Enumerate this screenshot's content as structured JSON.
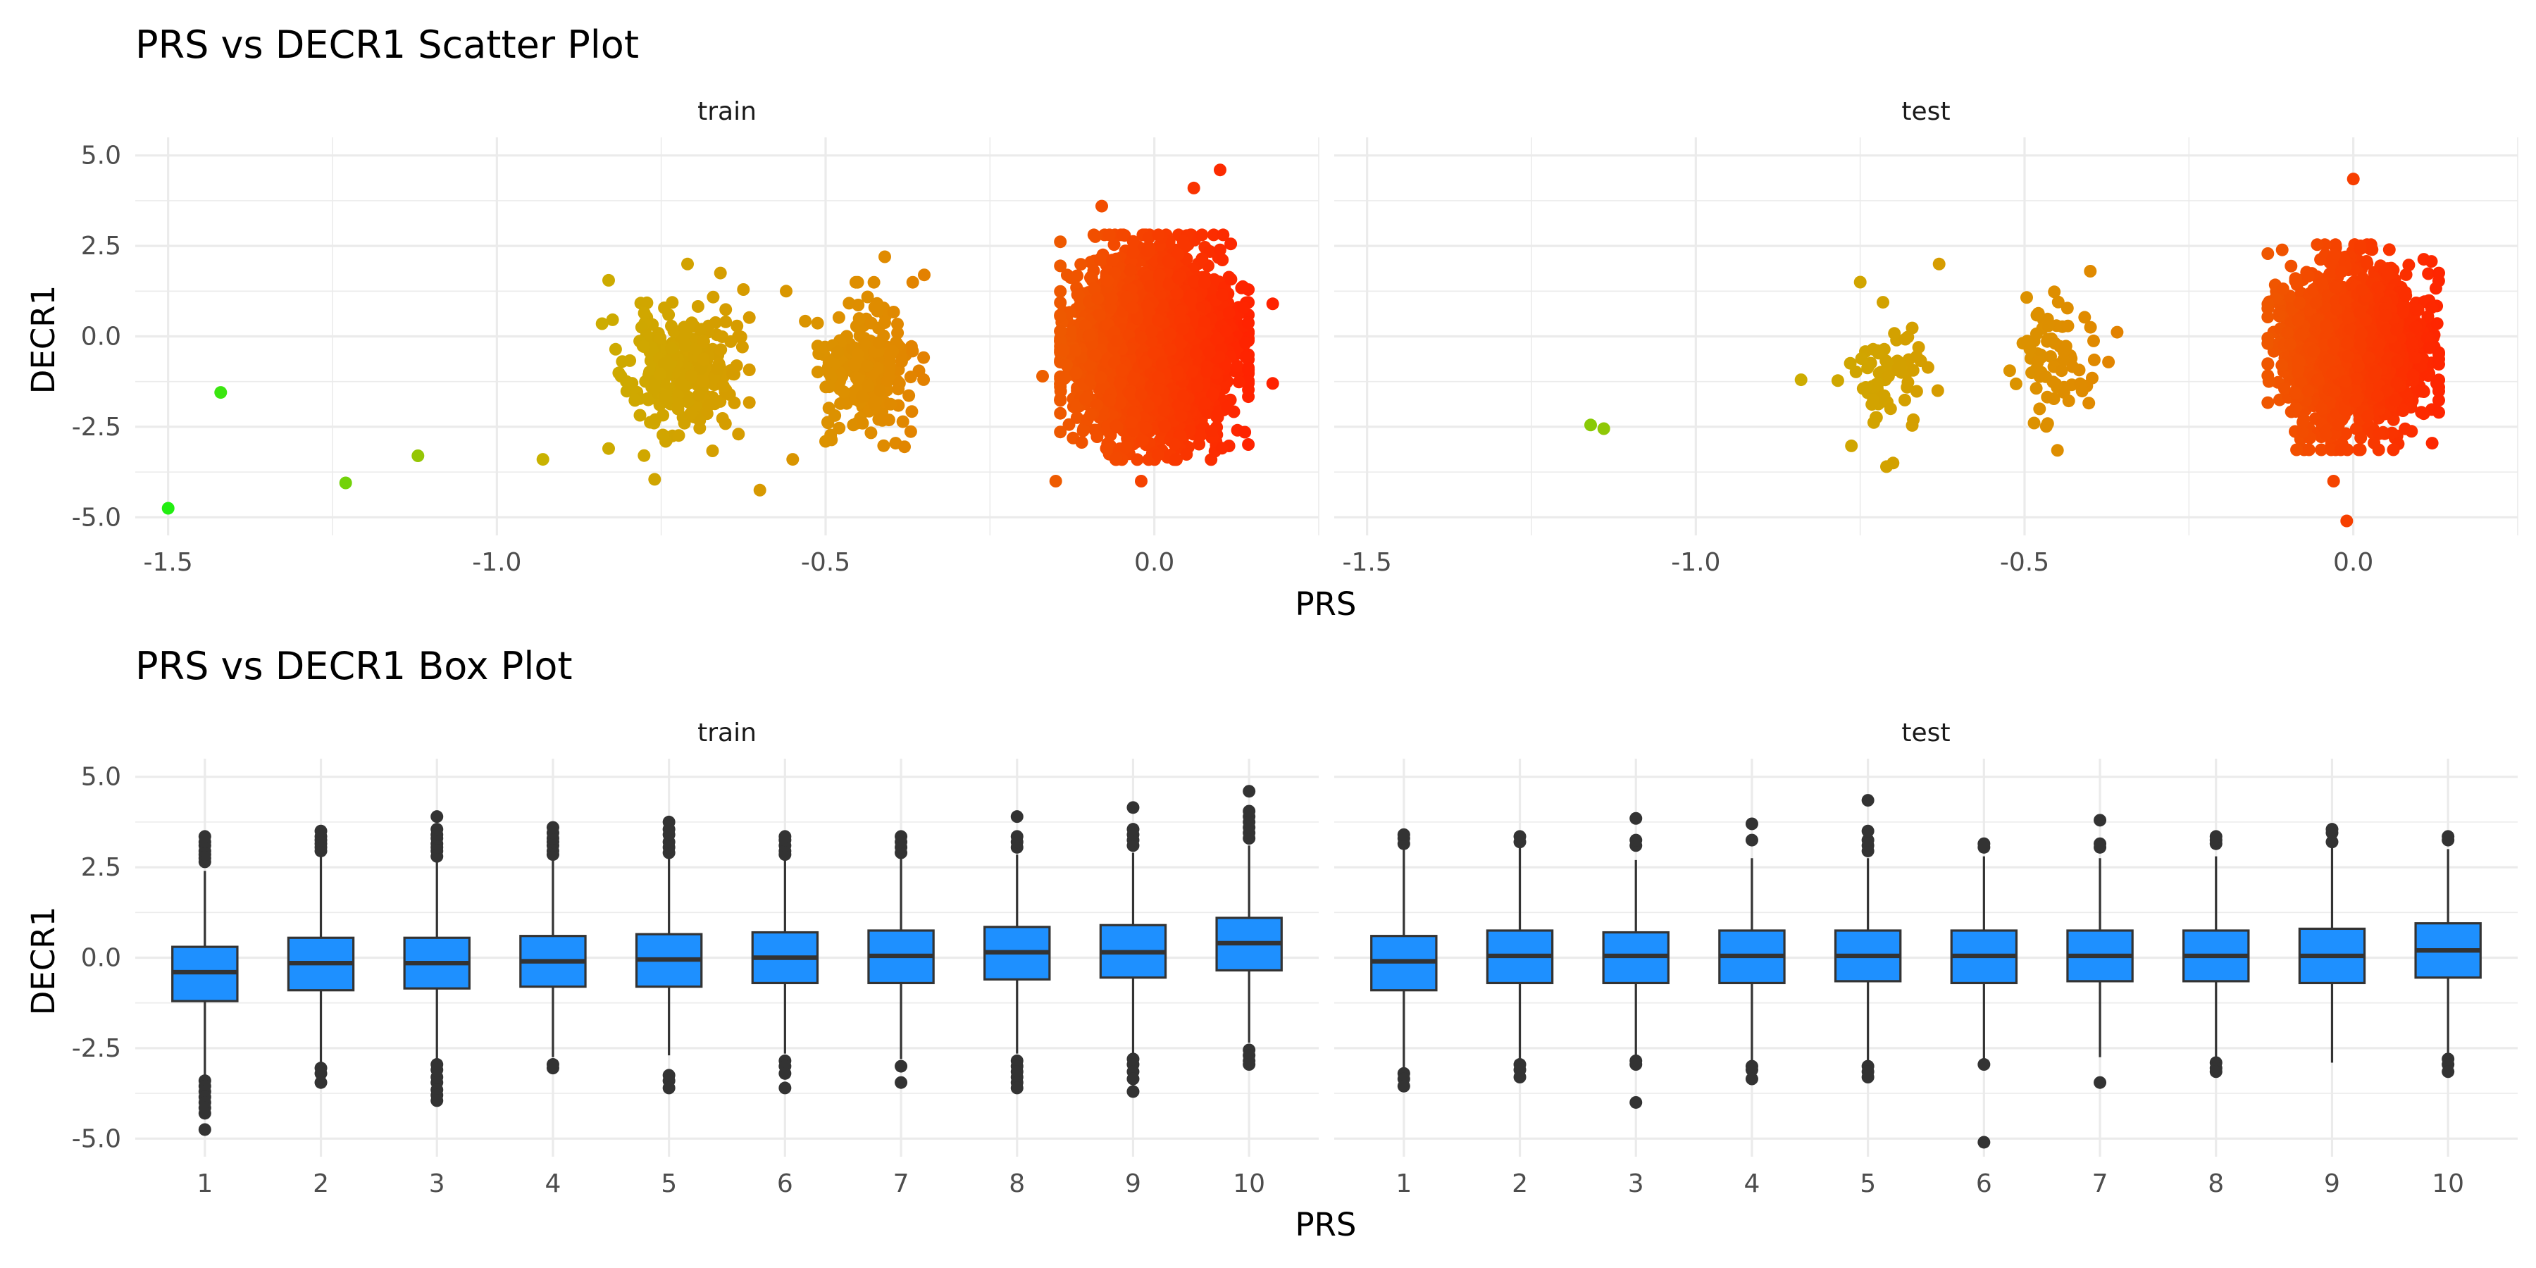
{
  "chart_data": [
    {
      "type": "scatter",
      "title": "PRS vs DECR1 Scatter Plot",
      "xlabel": "PRS",
      "ylabel": "DECR1",
      "xlim": [
        -1.55,
        0.25
      ],
      "ylim": [
        -5.5,
        5.5
      ],
      "x_ticks": [
        "-1.5",
        "-1.0",
        "-0.5",
        "0.0"
      ],
      "y_ticks": [
        "-5.0",
        "-2.5",
        "0.0",
        "2.5",
        "5.0"
      ],
      "grid": true,
      "color_gradient": [
        "#22ee11",
        "#c8b400",
        "#e08a00",
        "#ff2200"
      ],
      "facets": [
        {
          "label": "train",
          "clusters": [
            {
              "x_center": -0.72,
              "y_center": -1.0,
              "x_sd": 0.04,
              "y_sd": 0.85,
              "n": 260
            },
            {
              "x_center": -0.44,
              "y_center": -0.8,
              "x_sd": 0.035,
              "y_sd": 0.85,
              "n": 230
            },
            {
              "x_center": 0.0,
              "y_center": -0.3,
              "x_sd": 0.055,
              "y_sd": 1.15,
              "n": 4500
            }
          ],
          "points": [
            {
              "x": -1.5,
              "y": -4.75
            },
            {
              "x": -1.42,
              "y": -1.55
            },
            {
              "x": -1.23,
              "y": -4.05
            },
            {
              "x": -1.12,
              "y": -3.3
            },
            {
              "x": -0.93,
              "y": -3.4
            },
            {
              "x": -0.84,
              "y": 0.35
            },
            {
              "x": -0.83,
              "y": 1.55
            },
            {
              "x": -0.83,
              "y": -3.1
            },
            {
              "x": -0.76,
              "y": -3.95
            },
            {
              "x": -0.6,
              "y": -4.25
            },
            {
              "x": -0.66,
              "y": 1.75
            },
            {
              "x": -0.71,
              "y": 2.0
            },
            {
              "x": -0.56,
              "y": 1.25
            },
            {
              "x": -0.55,
              "y": -3.4
            },
            {
              "x": -0.41,
              "y": 2.2
            },
            {
              "x": -0.35,
              "y": 1.7
            },
            {
              "x": -0.38,
              "y": -3.05
            },
            {
              "x": -0.5,
              "y": -2.9
            },
            {
              "x": 0.1,
              "y": 4.6
            },
            {
              "x": 0.06,
              "y": 4.1
            },
            {
              "x": -0.08,
              "y": 3.6
            },
            {
              "x": -0.15,
              "y": -4.0
            },
            {
              "x": -0.02,
              "y": -4.0
            },
            {
              "x": 0.18,
              "y": 0.9
            },
            {
              "x": 0.18,
              "y": -1.3
            },
            {
              "x": -0.17,
              "y": -1.1
            }
          ]
        },
        {
          "label": "test",
          "clusters": [
            {
              "x_center": -0.71,
              "y_center": -1.0,
              "x_sd": 0.03,
              "y_sd": 0.75,
              "n": 70
            },
            {
              "x_center": -0.45,
              "y_center": -0.6,
              "x_sd": 0.035,
              "y_sd": 0.75,
              "n": 75
            },
            {
              "x_center": 0.0,
              "y_center": -0.3,
              "x_sd": 0.05,
              "y_sd": 1.05,
              "n": 2200
            }
          ],
          "points": [
            {
              "x": -1.16,
              "y": -2.45
            },
            {
              "x": -1.14,
              "y": -2.55
            },
            {
              "x": -0.84,
              "y": -1.2
            },
            {
              "x": -0.7,
              "y": -3.5
            },
            {
              "x": -0.71,
              "y": -3.6
            },
            {
              "x": -0.75,
              "y": 1.5
            },
            {
              "x": -0.63,
              "y": 2.0
            },
            {
              "x": -0.45,
              "y": -3.15
            },
            {
              "x": -0.4,
              "y": 1.8
            },
            {
              "x": 0.0,
              "y": 4.35
            },
            {
              "x": -0.01,
              "y": -5.1
            },
            {
              "x": -0.03,
              "y": -4.0
            },
            {
              "x": 0.13,
              "y": -2.1
            },
            {
              "x": 0.13,
              "y": 1.75
            }
          ]
        }
      ]
    },
    {
      "type": "box",
      "title": "PRS vs DECR1 Box Plot",
      "xlabel": "PRS",
      "ylabel": "DECR1",
      "categories": [
        "1",
        "2",
        "3",
        "4",
        "5",
        "6",
        "7",
        "8",
        "9",
        "10"
      ],
      "ylim": [
        -5.5,
        5.5
      ],
      "y_ticks": [
        "-5.0",
        "-2.5",
        "0.0",
        "2.5",
        "5.0"
      ],
      "grid": true,
      "box_color": "#1e90ff",
      "facets": [
        {
          "label": "train",
          "boxes": [
            {
              "lower_whisker": -3.25,
              "q1": -1.2,
              "median": -0.4,
              "q3": 0.3,
              "upper_whisker": 2.4,
              "outliers": [
                2.65,
                2.75,
                2.85,
                2.95,
                3.1,
                3.2,
                3.35,
                -3.4,
                -3.55,
                -3.7,
                -3.85,
                -4.0,
                -4.15,
                -4.3,
                -4.75
              ]
            },
            {
              "lower_whisker": -2.9,
              "q1": -0.9,
              "median": -0.15,
              "q3": 0.55,
              "upper_whisker": 2.8,
              "outliers": [
                2.95,
                3.05,
                3.15,
                3.25,
                3.35,
                3.5,
                -3.05,
                -3.2,
                -3.45
              ]
            },
            {
              "lower_whisker": -2.8,
              "q1": -0.85,
              "median": -0.15,
              "q3": 0.55,
              "upper_whisker": 2.65,
              "outliers": [
                2.8,
                2.95,
                3.05,
                3.15,
                3.3,
                3.4,
                3.55,
                3.9,
                -2.95,
                -3.1,
                -3.3,
                -3.45,
                -3.65,
                -3.8,
                -3.95
              ]
            },
            {
              "lower_whisker": -2.75,
              "q1": -0.8,
              "median": -0.1,
              "q3": 0.6,
              "upper_whisker": 2.7,
              "outliers": [
                2.85,
                2.95,
                3.1,
                3.2,
                3.3,
                3.45,
                3.6,
                -2.95,
                -3.05
              ]
            },
            {
              "lower_whisker": -2.7,
              "q1": -0.8,
              "median": -0.05,
              "q3": 0.65,
              "upper_whisker": 2.75,
              "outliers": [
                2.9,
                3.05,
                3.2,
                3.4,
                3.55,
                3.75,
                -3.25,
                -3.4,
                -3.6
              ]
            },
            {
              "lower_whisker": -2.65,
              "q1": -0.7,
              "median": 0.0,
              "q3": 0.7,
              "upper_whisker": 2.7,
              "outliers": [
                2.85,
                2.95,
                3.1,
                3.25,
                3.35,
                -2.85,
                -3.0,
                -3.2,
                -3.6
              ]
            },
            {
              "lower_whisker": -2.8,
              "q1": -0.7,
              "median": 0.05,
              "q3": 0.75,
              "upper_whisker": 2.75,
              "outliers": [
                2.9,
                3.05,
                3.2,
                3.35,
                -3.0,
                -3.45
              ]
            },
            {
              "lower_whisker": -2.65,
              "q1": -0.6,
              "median": 0.15,
              "q3": 0.85,
              "upper_whisker": 2.85,
              "outliers": [
                3.05,
                3.2,
                3.35,
                3.9,
                -2.85,
                -3.0,
                -3.15,
                -3.3,
                -3.45,
                -3.6
              ]
            },
            {
              "lower_whisker": -2.65,
              "q1": -0.55,
              "median": 0.15,
              "q3": 0.9,
              "upper_whisker": 2.9,
              "outliers": [
                3.1,
                3.25,
                3.4,
                3.55,
                4.15,
                -2.8,
                -2.95,
                -3.15,
                -3.35,
                -3.7
              ]
            },
            {
              "lower_whisker": -2.35,
              "q1": -0.35,
              "median": 0.4,
              "q3": 1.1,
              "upper_whisker": 3.1,
              "outliers": [
                3.3,
                3.45,
                3.6,
                3.75,
                3.9,
                4.05,
                4.6,
                -2.55,
                -2.7,
                -2.85,
                -2.95
              ]
            }
          ]
        },
        {
          "label": "test",
          "boxes": [
            {
              "lower_whisker": -3.05,
              "q1": -0.9,
              "median": -0.1,
              "q3": 0.6,
              "upper_whisker": 3.0,
              "outliers": [
                3.15,
                3.3,
                3.4,
                -3.2,
                -3.35,
                -3.55
              ]
            },
            {
              "lower_whisker": -2.85,
              "q1": -0.7,
              "median": 0.05,
              "q3": 0.75,
              "upper_whisker": 3.05,
              "outliers": [
                3.2,
                3.35,
                -2.95,
                -3.1,
                -3.3
              ]
            },
            {
              "lower_whisker": -2.7,
              "q1": -0.7,
              "median": 0.05,
              "q3": 0.7,
              "upper_whisker": 2.7,
              "outliers": [
                3.1,
                3.25,
                3.85,
                -2.85,
                -2.95,
                -4.0
              ]
            },
            {
              "lower_whisker": -2.85,
              "q1": -0.7,
              "median": 0.05,
              "q3": 0.75,
              "upper_whisker": 2.75,
              "outliers": [
                3.25,
                3.7,
                -3.0,
                -3.1,
                -3.35
              ]
            },
            {
              "lower_whisker": -2.85,
              "q1": -0.65,
              "median": 0.05,
              "q3": 0.75,
              "upper_whisker": 2.75,
              "outliers": [
                2.95,
                3.1,
                3.25,
                3.5,
                4.35,
                -3.0,
                -3.15,
                -3.3
              ]
            },
            {
              "lower_whisker": -2.85,
              "q1": -0.7,
              "median": 0.05,
              "q3": 0.75,
              "upper_whisker": 2.8,
              "outliers": [
                3.05,
                3.15,
                -2.95,
                -5.1
              ]
            },
            {
              "lower_whisker": -2.75,
              "q1": -0.65,
              "median": 0.05,
              "q3": 0.75,
              "upper_whisker": 2.75,
              "outliers": [
                3.05,
                3.15,
                3.8,
                -3.45
              ]
            },
            {
              "lower_whisker": -2.75,
              "q1": -0.65,
              "median": 0.05,
              "q3": 0.75,
              "upper_whisker": 2.8,
              "outliers": [
                3.15,
                3.25,
                3.35,
                -2.9,
                -3.05,
                -3.15
              ]
            },
            {
              "lower_whisker": -2.9,
              "q1": -0.7,
              "median": 0.05,
              "q3": 0.8,
              "upper_whisker": 3.05,
              "outliers": [
                3.2,
                3.45,
                3.55
              ]
            },
            {
              "lower_whisker": -2.65,
              "q1": -0.55,
              "median": 0.2,
              "q3": 0.95,
              "upper_whisker": 3.0,
              "outliers": [
                3.25,
                3.35,
                -2.8,
                -2.95,
                -3.15
              ]
            }
          ]
        }
      ]
    }
  ]
}
